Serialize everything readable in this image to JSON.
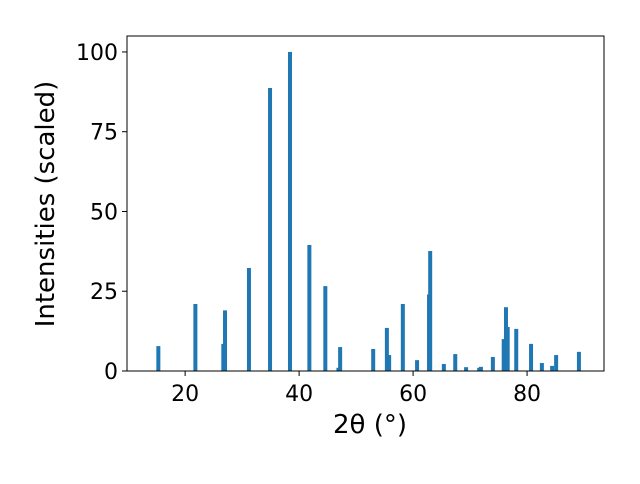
{
  "chart_data": {
    "type": "bar",
    "xlabel": "2θ (°)",
    "ylabel": "Intensities (scaled)",
    "x": [
      15.3,
      21.8,
      26.7,
      27.0,
      31.2,
      34.9,
      38.4,
      41.8,
      44.6,
      46.9,
      47.2,
      53.0,
      55.4,
      55.8,
      58.2,
      60.7,
      62.8,
      63.0,
      65.4,
      67.4,
      69.3,
      71.6,
      71.9,
      74.0,
      75.9,
      76.3,
      76.6,
      78.1,
      80.7,
      82.6,
      84.4,
      85.1,
      89.1
    ],
    "values": [
      7.8,
      21,
      8.5,
      19,
      32.3,
      88.7,
      100,
      39.5,
      26.6,
      1,
      7.5,
      6.9,
      13.5,
      5,
      21,
      3.4,
      24,
      37.6,
      2.2,
      5.3,
      1.2,
      1,
      1.3,
      4.4,
      10,
      20,
      13.8,
      13.2,
      8.5,
      2.5,
      1.6,
      5,
      6
    ],
    "color": "#1f77b4",
    "xlim": [
      9.8,
      93.5
    ],
    "ylim": [
      0,
      105
    ],
    "xticks": [
      20,
      40,
      60,
      80
    ],
    "yticks": [
      0,
      25,
      50,
      75,
      100
    ]
  }
}
